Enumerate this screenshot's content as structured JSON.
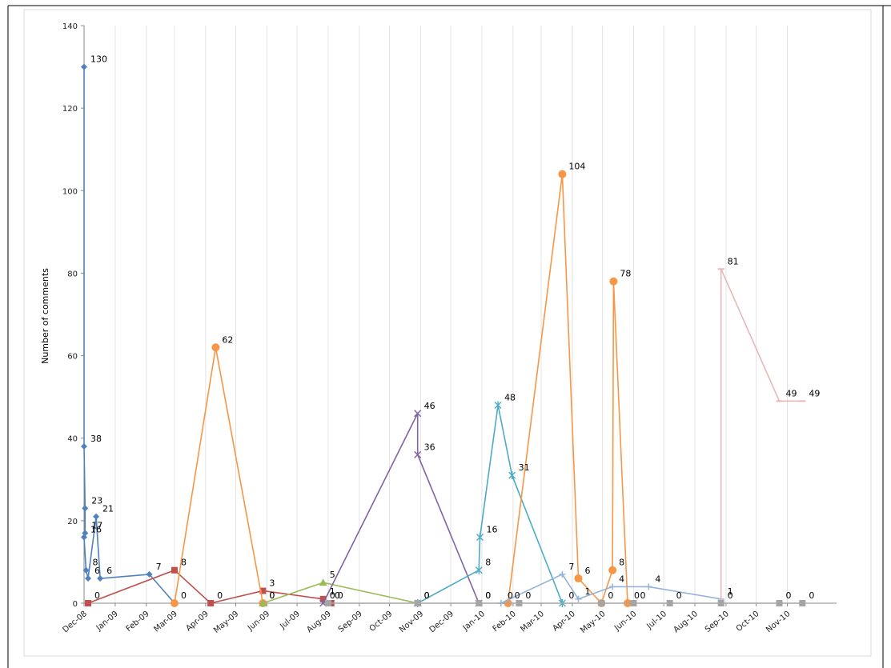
{
  "chart_data": {
    "type": "line",
    "title": "",
    "xlabel": "",
    "ylabel": "Number of comments",
    "ylim": [
      0,
      140
    ],
    "xlim": [
      "2008-12-01",
      "2010-12-20"
    ],
    "yticks": [
      0,
      20,
      40,
      60,
      80,
      100,
      120,
      140
    ],
    "xticks": [
      "Dec-08",
      "Jan-09",
      "Feb-09",
      "Mar-09",
      "Apr-09",
      "May-09",
      "Jun-09",
      "Jul-09",
      "Aug-09",
      "Sep-09",
      "Oct-09",
      "Nov-09",
      "Dec-09",
      "Jan-10",
      "Feb-10",
      "Mar-10",
      "Apr-10",
      "May-10",
      "Jun-10",
      "Jul-10",
      "Aug-10",
      "Sep-10",
      "Oct-10",
      "Nov-10"
    ],
    "grid": {
      "vertical": true,
      "horizontal": false
    },
    "legend": "none",
    "series": [
      {
        "color": "#4f81bd",
        "marker": "diamond",
        "points": [
          [
            "2008-12-01",
            130,
            "130"
          ],
          [
            "2008-12-01",
            38,
            "38"
          ],
          [
            "2008-12-02",
            23,
            "23"
          ],
          [
            "2008-12-02",
            17,
            "17"
          ],
          [
            "2008-12-01",
            16,
            "16"
          ],
          [
            "2008-12-03",
            8,
            "8"
          ],
          [
            "2008-12-05",
            6,
            "6"
          ],
          [
            "2008-12-13",
            21,
            "21"
          ],
          [
            "2008-12-17",
            6,
            "6"
          ],
          [
            "2009-02-04",
            7,
            "7"
          ],
          [
            "2009-03-01",
            0,
            ""
          ]
        ]
      },
      {
        "color": "#c0504d",
        "marker": "square",
        "points": [
          [
            "2008-12-05",
            0,
            "0"
          ],
          [
            "2009-03-01",
            8,
            "8"
          ],
          [
            "2009-04-06",
            0,
            "0"
          ],
          [
            "2009-05-28",
            3,
            "3"
          ],
          [
            "2009-07-27",
            1,
            "1"
          ],
          [
            "2009-08-04",
            0,
            "0"
          ]
        ]
      },
      {
        "color": "#f79646",
        "marker": "circle",
        "points": [
          [
            "2009-03-01",
            0,
            "0"
          ],
          [
            "2009-04-11",
            62,
            "62"
          ],
          [
            "2009-05-28",
            0,
            "0"
          ]
        ]
      },
      {
        "color": "#9bbb59",
        "marker": "triangle",
        "points": [
          [
            "2009-05-28",
            0,
            "0"
          ],
          [
            "2009-07-27",
            5,
            "5"
          ],
          [
            "2009-10-29",
            0,
            "0"
          ]
        ]
      },
      {
        "color": "#8064a2",
        "marker": "x",
        "points": [
          [
            "2009-07-27",
            0,
            "0"
          ],
          [
            "2009-10-29",
            46,
            "46"
          ],
          [
            "2009-10-29",
            36,
            "36"
          ],
          [
            "2009-12-29",
            0,
            "0"
          ]
        ]
      },
      {
        "color": "#4bacc6",
        "marker": "star",
        "points": [
          [
            "2009-10-29",
            0,
            ""
          ],
          [
            "2009-12-29",
            8,
            "8"
          ],
          [
            "2009-12-30",
            16,
            "16"
          ],
          [
            "2010-01-17",
            48,
            "48"
          ],
          [
            "2010-01-31",
            31,
            "31"
          ],
          [
            "2010-03-22",
            0,
            "0"
          ]
        ]
      },
      {
        "color": "#f79646",
        "marker": "circle",
        "points": [
          [
            "2010-01-27",
            0,
            "0"
          ],
          [
            "2010-03-22",
            104,
            "104"
          ],
          [
            "2010-04-07",
            6,
            "6"
          ],
          [
            "2010-04-30",
            0,
            ""
          ],
          [
            "2010-05-11",
            8,
            "8"
          ],
          [
            "2010-05-12",
            78,
            "78"
          ],
          [
            "2010-05-26",
            0,
            "0"
          ]
        ]
      },
      {
        "color": "#95b3d7",
        "marker": "plus",
        "points": [
          [
            "2010-01-20",
            0,
            "0"
          ],
          [
            "2010-03-22",
            7,
            "7"
          ],
          [
            "2010-04-07",
            1,
            "1"
          ],
          [
            "2010-05-11",
            4,
            "4"
          ],
          [
            "2010-06-16",
            4,
            "4"
          ],
          [
            "2010-08-27",
            1,
            "1"
          ]
        ]
      },
      {
        "color": "#e6b9b8",
        "marker": "dash",
        "points": [
          [
            "2010-08-27",
            0,
            ""
          ],
          [
            "2010-08-27",
            81,
            "81"
          ],
          [
            "2010-10-24",
            49,
            "49"
          ],
          [
            "2010-11-16",
            49,
            "49"
          ]
        ]
      },
      {
        "color": "#a5a5a5",
        "marker": "square",
        "points": [
          [
            "2009-08-01",
            0,
            "0"
          ],
          [
            "2009-10-29",
            0,
            "0"
          ],
          [
            "2009-12-29",
            0,
            "0"
          ],
          [
            "2010-02-07",
            0,
            "0"
          ],
          [
            "2010-04-30",
            0,
            "0"
          ],
          [
            "2010-06-01",
            0,
            "0"
          ],
          [
            "2010-07-07",
            0,
            "0"
          ],
          [
            "2010-08-27",
            0,
            "0"
          ],
          [
            "2010-10-24",
            0,
            "0"
          ],
          [
            "2010-11-16",
            0,
            "0"
          ]
        ]
      }
    ]
  }
}
